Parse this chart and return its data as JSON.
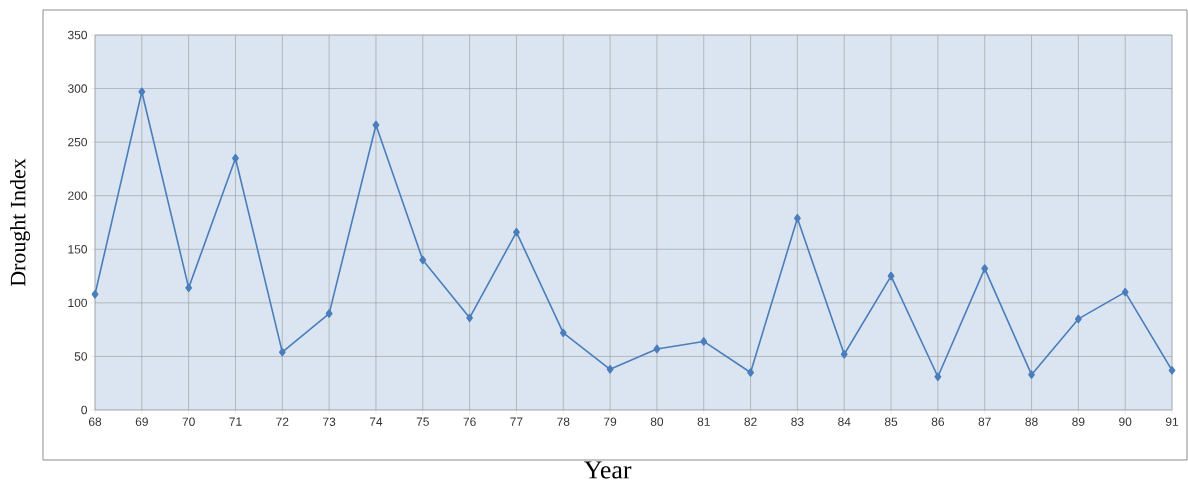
{
  "chart_data": {
    "type": "line",
    "xlabel": "Year",
    "ylabel": "Drought Index",
    "categories": [
      "68",
      "69",
      "70",
      "71",
      "72",
      "73",
      "74",
      "75",
      "76",
      "77",
      "78",
      "79",
      "80",
      "81",
      "82",
      "83",
      "84",
      "85",
      "86",
      "87",
      "88",
      "89",
      "90",
      "91"
    ],
    "series": [
      {
        "color": "#4a7ebb",
        "values": [
          108,
          297,
          114,
          235,
          54,
          90,
          266,
          140,
          86,
          166,
          72,
          38,
          57,
          64,
          35,
          179,
          52,
          125,
          31,
          132,
          33,
          85,
          110,
          37
        ]
      }
    ],
    "ylim": [
      0,
      350
    ],
    "yticks": [
      0,
      50,
      100,
      150,
      200,
      250,
      300,
      350
    ],
    "grid": true,
    "marker": "diamond",
    "line_style": "solid"
  }
}
